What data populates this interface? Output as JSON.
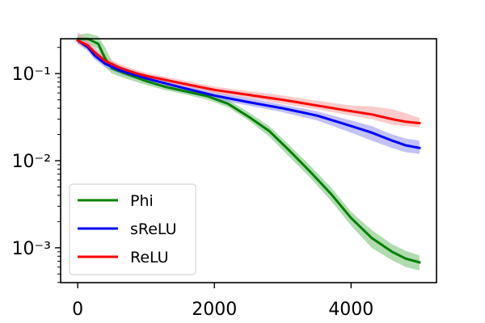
{
  "chart_data": {
    "type": "line",
    "title": "",
    "xlabel": "",
    "ylabel": "",
    "xlim": [
      -250,
      5250
    ],
    "ylim_log10": [
      -3.4,
      -0.6
    ],
    "yscale": "log",
    "grid": false,
    "legend_position": "lower-left",
    "x_ticks": [
      0,
      2000,
      4000
    ],
    "x_tick_labels": [
      "0",
      "2000",
      "4000"
    ],
    "y_ticks_log10": [
      -1,
      -2,
      -3
    ],
    "y_tick_labels": [
      "10⁻¹",
      "10⁻²",
      "10⁻³"
    ],
    "series": [
      {
        "name": "Phi",
        "color": "#008000",
        "band_color": "#6fbf6f",
        "x": [
          0,
          150,
          300,
          400,
          500,
          700,
          1000,
          1300,
          1600,
          1900,
          2200,
          2500,
          2800,
          3100,
          3400,
          3700,
          4000,
          4300,
          4600,
          4800,
          5000
        ],
        "y": [
          0.25,
          0.25,
          0.22,
          0.15,
          0.115,
          0.1,
          0.082,
          0.07,
          0.062,
          0.055,
          0.045,
          0.032,
          0.022,
          0.013,
          0.0075,
          0.0042,
          0.0022,
          0.0013,
          0.0009,
          0.00075,
          0.00068
        ],
        "lower": [
          0.22,
          0.22,
          0.19,
          0.12,
          0.1,
          0.088,
          0.074,
          0.064,
          0.057,
          0.05,
          0.041,
          0.029,
          0.019,
          0.011,
          0.0064,
          0.0035,
          0.0018,
          0.001,
          0.00072,
          0.0006,
          0.00055
        ],
        "upper": [
          0.28,
          0.29,
          0.27,
          0.2,
          0.14,
          0.112,
          0.09,
          0.077,
          0.068,
          0.06,
          0.05,
          0.036,
          0.025,
          0.015,
          0.0088,
          0.005,
          0.0026,
          0.0016,
          0.0011,
          0.00092,
          0.00082
        ]
      },
      {
        "name": "sReLU",
        "color": "#0000ff",
        "band_color": "#8f8ff0",
        "x": [
          0,
          150,
          250,
          400,
          600,
          800,
          1000,
          1500,
          2000,
          2500,
          3000,
          3500,
          4000,
          4300,
          4600,
          4800,
          5000
        ],
        "y": [
          0.24,
          0.2,
          0.16,
          0.13,
          0.11,
          0.098,
          0.088,
          0.07,
          0.056,
          0.047,
          0.04,
          0.033,
          0.025,
          0.021,
          0.017,
          0.015,
          0.014
        ],
        "lower": [
          0.22,
          0.18,
          0.145,
          0.118,
          0.1,
          0.09,
          0.08,
          0.064,
          0.051,
          0.043,
          0.036,
          0.029,
          0.021,
          0.017,
          0.014,
          0.0125,
          0.012
        ],
        "upper": [
          0.27,
          0.23,
          0.185,
          0.145,
          0.122,
          0.107,
          0.096,
          0.077,
          0.062,
          0.052,
          0.044,
          0.037,
          0.029,
          0.025,
          0.02,
          0.018,
          0.017
        ]
      },
      {
        "name": "ReLU",
        "color": "#ff0000",
        "band_color": "#f5a0a0",
        "x": [
          0,
          150,
          250,
          400,
          600,
          800,
          1000,
          1500,
          2000,
          2500,
          3000,
          3500,
          4000,
          4300,
          4600,
          4800,
          5000
        ],
        "y": [
          0.24,
          0.21,
          0.175,
          0.14,
          0.118,
          0.104,
          0.094,
          0.078,
          0.065,
          0.057,
          0.05,
          0.043,
          0.037,
          0.034,
          0.03,
          0.028,
          0.027
        ],
        "lower": [
          0.22,
          0.19,
          0.16,
          0.128,
          0.108,
          0.096,
          0.087,
          0.072,
          0.06,
          0.052,
          0.045,
          0.039,
          0.033,
          0.03,
          0.026,
          0.025,
          0.024
        ],
        "upper": [
          0.3,
          0.24,
          0.2,
          0.155,
          0.13,
          0.114,
          0.102,
          0.085,
          0.071,
          0.063,
          0.056,
          0.049,
          0.043,
          0.042,
          0.039,
          0.035,
          0.031
        ]
      }
    ]
  }
}
